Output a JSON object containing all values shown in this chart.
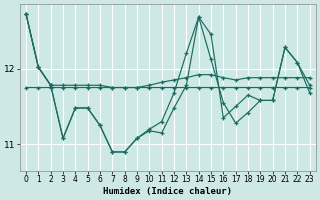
{
  "xlabel": "Humidex (Indice chaleur)",
  "xlim": [
    -0.5,
    23.5
  ],
  "ylim": [
    10.65,
    12.85
  ],
  "yticks": [
    11,
    12
  ],
  "xticks": [
    0,
    1,
    2,
    3,
    4,
    5,
    6,
    7,
    8,
    9,
    10,
    11,
    12,
    13,
    14,
    15,
    16,
    17,
    18,
    19,
    20,
    21,
    22,
    23
  ],
  "background_color": "#cde8e5",
  "line_color": "#1a6b60",
  "grid_color": "#ffffff",
  "line_a": [
    12.72,
    12.02,
    11.78,
    11.08,
    11.48,
    11.48,
    11.25,
    10.9,
    10.9,
    11.08,
    11.18,
    11.15,
    11.48,
    11.78,
    12.68,
    12.45,
    11.35,
    11.5,
    11.65,
    11.58,
    11.58,
    12.28,
    12.08,
    11.68
  ],
  "line_b": [
    12.72,
    12.02,
    11.78,
    11.78,
    11.78,
    11.78,
    11.78,
    11.75,
    11.75,
    11.75,
    11.75,
    11.75,
    11.75,
    11.75,
    11.75,
    11.75,
    11.75,
    11.75,
    11.75,
    11.75,
    11.75,
    11.75,
    11.75,
    11.75
  ],
  "line_c": [
    12.72,
    12.02,
    11.78,
    11.08,
    11.48,
    11.48,
    11.25,
    10.9,
    10.9,
    11.08,
    11.2,
    11.3,
    11.68,
    12.2,
    12.68,
    12.12,
    11.55,
    11.28,
    11.42,
    11.58,
    11.58,
    12.28,
    12.08,
    11.78
  ],
  "line_d": [
    11.75,
    11.75,
    11.75,
    11.75,
    11.75,
    11.75,
    11.75,
    11.75,
    11.75,
    11.75,
    11.78,
    11.82,
    11.85,
    11.88,
    11.92,
    11.92,
    11.88,
    11.85,
    11.88,
    11.88,
    11.88,
    11.88,
    11.88,
    11.88
  ]
}
